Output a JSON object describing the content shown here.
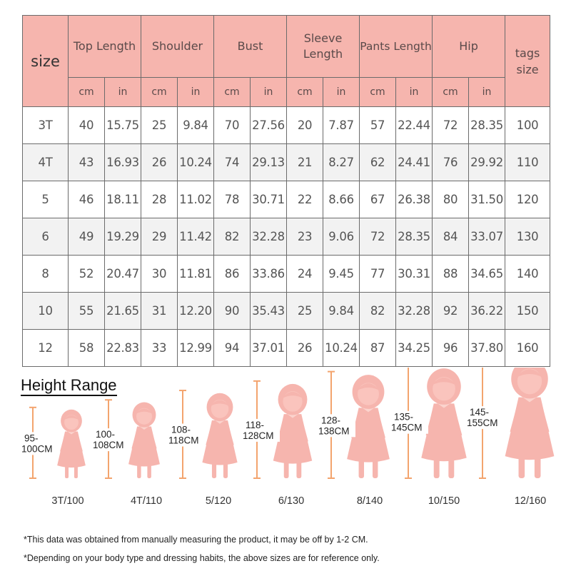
{
  "table": {
    "size_header": "size",
    "groups": [
      "Top Length",
      "Shoulder",
      "Bust",
      "Sleeve Length",
      "Pants Length",
      "Hip"
    ],
    "tags_header": "tags size",
    "unit_cm": "cm",
    "unit_in": "in",
    "rows": [
      {
        "size": "3T",
        "vals": [
          "40",
          "15.75",
          "25",
          "9.84",
          "70",
          "27.56",
          "20",
          "7.87",
          "57",
          "22.44",
          "72",
          "28.35"
        ],
        "tag": "100"
      },
      {
        "size": "4T",
        "vals": [
          "43",
          "16.93",
          "26",
          "10.24",
          "74",
          "29.13",
          "21",
          "8.27",
          "62",
          "24.41",
          "76",
          "29.92"
        ],
        "tag": "110"
      },
      {
        "size": "5",
        "vals": [
          "46",
          "18.11",
          "28",
          "11.02",
          "78",
          "30.71",
          "22",
          "8.66",
          "67",
          "26.38",
          "80",
          "31.50"
        ],
        "tag": "120"
      },
      {
        "size": "6",
        "vals": [
          "49",
          "19.29",
          "29",
          "11.42",
          "82",
          "32.28",
          "23",
          "9.06",
          "72",
          "28.35",
          "84",
          "33.07"
        ],
        "tag": "130"
      },
      {
        "size": "8",
        "vals": [
          "52",
          "20.47",
          "30",
          "11.81",
          "86",
          "33.86",
          "24",
          "9.45",
          "77",
          "30.31",
          "88",
          "34.65"
        ],
        "tag": "140"
      },
      {
        "size": "10",
        "vals": [
          "55",
          "21.65",
          "31",
          "12.20",
          "90",
          "35.43",
          "25",
          "9.84",
          "82",
          "32.28",
          "92",
          "36.22"
        ],
        "tag": "150"
      },
      {
        "size": "12",
        "vals": [
          "58",
          "22.83",
          "33",
          "12.99",
          "94",
          "37.01",
          "26",
          "10.24",
          "87",
          "34.25",
          "96",
          "37.80"
        ],
        "tag": "160"
      }
    ]
  },
  "height_range": {
    "title": "Height Range",
    "items": [
      {
        "range_top": "95-",
        "range_bottom": "100CM",
        "label": "3T/100",
        "min_cm": 95,
        "max_cm": 100
      },
      {
        "range_top": "100-",
        "range_bottom": "108CM",
        "label": "4T/110",
        "min_cm": 100,
        "max_cm": 108
      },
      {
        "range_top": "108-",
        "range_bottom": "118CM",
        "label": "5/120",
        "min_cm": 108,
        "max_cm": 118
      },
      {
        "range_top": "118-",
        "range_bottom": "128CM",
        "label": "6/130",
        "min_cm": 118,
        "max_cm": 128
      },
      {
        "range_top": "128-",
        "range_bottom": "138CM",
        "label": "8/140",
        "min_cm": 128,
        "max_cm": 138
      },
      {
        "range_top": "135-",
        "range_bottom": "145CM",
        "label": "10/150",
        "min_cm": 135,
        "max_cm": 145
      },
      {
        "range_top": "145-",
        "range_bottom": "155CM",
        "label": "12/160",
        "min_cm": 145,
        "max_cm": 155
      }
    ],
    "colors": {
      "figure": "#f6b5ae",
      "bar": "#f3a46e",
      "table_header": "#f6b5ae"
    }
  },
  "notes": [
    "*This data was obtained from manually measuring the product, it may be off by 1-2 CM.",
    "*Depending on your body type and dressing habits, the above sizes are for reference only."
  ]
}
